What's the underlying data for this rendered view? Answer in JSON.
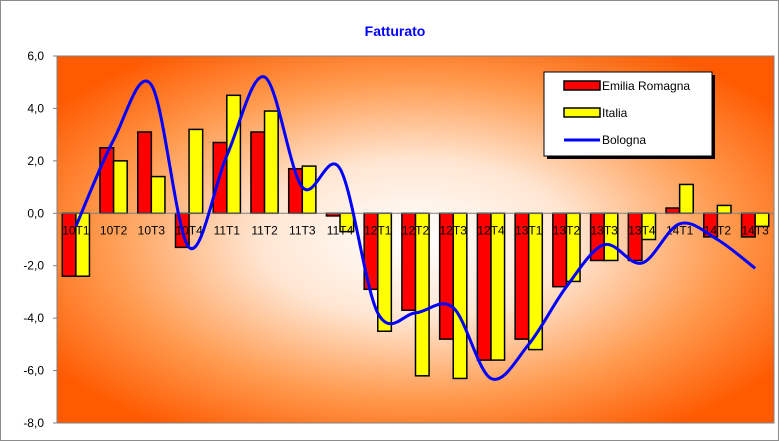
{
  "chart_data": {
    "type": "bar",
    "title": "Fatturato",
    "categories": [
      "10T1",
      "10T2",
      "10T3",
      "10T4",
      "11T1",
      "11T2",
      "11T3",
      "11T4",
      "12T1",
      "12T2",
      "12T3",
      "12T4",
      "13T1",
      "13T2",
      "13T3",
      "13T4",
      "14T1",
      "14T2",
      "14T3"
    ],
    "series": [
      {
        "name": "Emilia Romagna",
        "kind": "bar",
        "color": "#ff0000",
        "values": [
          -2.4,
          2.5,
          3.1,
          -1.3,
          2.7,
          3.1,
          1.7,
          -0.1,
          -2.9,
          -3.7,
          -4.8,
          -5.6,
          -4.8,
          -2.8,
          -1.8,
          -1.8,
          0.2,
          -0.9,
          -0.9
        ]
      },
      {
        "name": "Italia",
        "kind": "bar",
        "color": "#ffff00",
        "values": [
          -2.4,
          2.0,
          1.4,
          3.2,
          4.5,
          3.9,
          1.8,
          -0.7,
          -4.5,
          -6.2,
          -6.3,
          -5.6,
          -5.2,
          -2.6,
          -1.8,
          -1.0,
          1.1,
          0.3,
          -0.5
        ]
      },
      {
        "name": "Bologna",
        "kind": "line",
        "color": "#0000ff",
        "values": [
          -0.5,
          2.8,
          4.9,
          -1.3,
          2.2,
          5.2,
          1.0,
          1.7,
          -3.8,
          -3.8,
          -3.6,
          -6.3,
          -5.0,
          -2.8,
          -1.2,
          -1.9,
          -0.4,
          -1.0,
          -2.1
        ]
      }
    ],
    "y_tick_labels": [
      "6,0",
      "4,0",
      "2,0",
      "0,0",
      "-2,0",
      "-4,0",
      "-6,0",
      "-8,0"
    ],
    "ylim": [
      -8,
      6
    ],
    "y_step": 2,
    "legend_position": "top-right",
    "grid": false,
    "plot_background": "radial-gradient white center to orange-red edges",
    "colors": {
      "gradient_center": "#ffffff",
      "gradient_edge": "#ff5a00",
      "title": "#0000ff"
    }
  }
}
